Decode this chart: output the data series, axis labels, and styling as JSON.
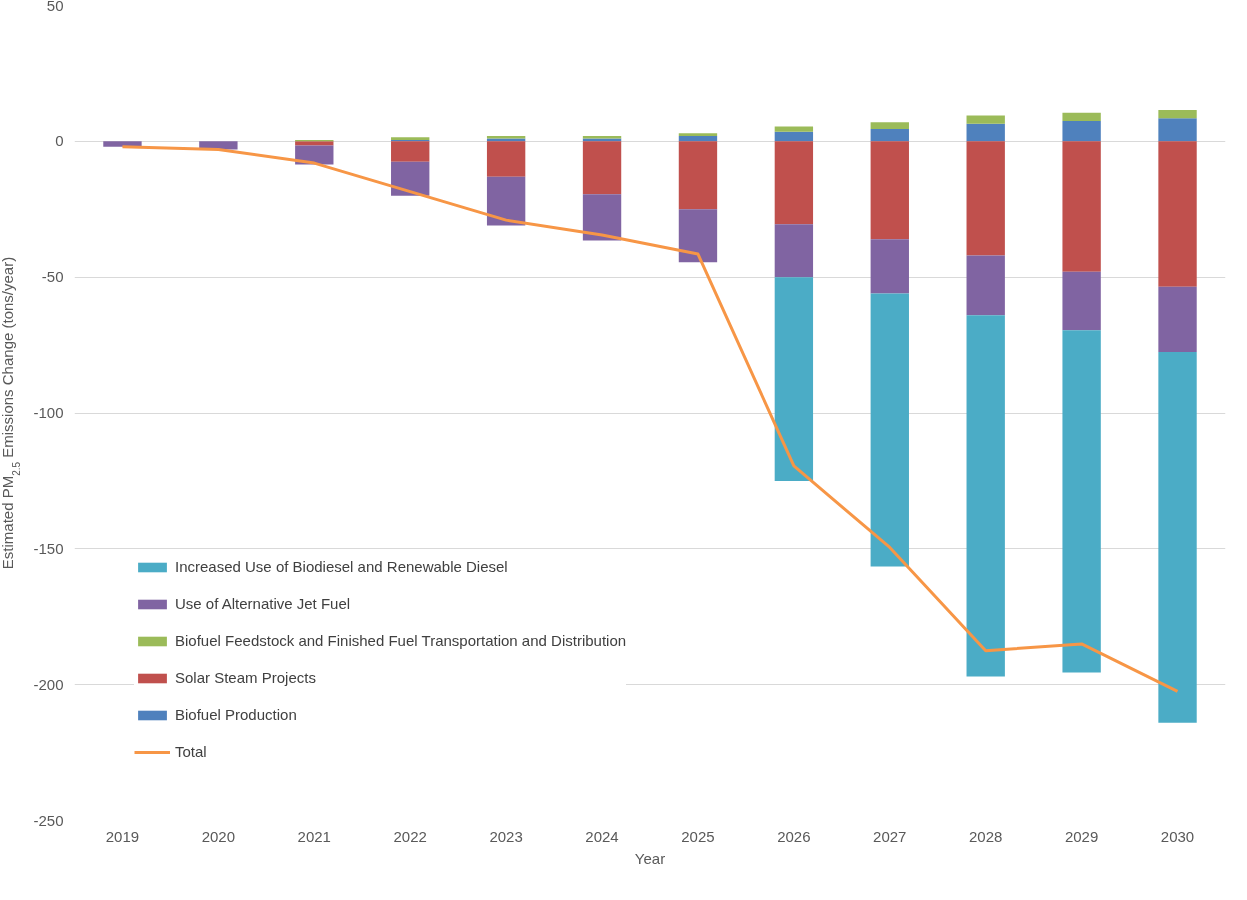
{
  "chart_data": {
    "type": "bar",
    "stacked": true,
    "xlabel": "Year",
    "ylabel": "Estimated PM$_{2.5}$ Emissions Change (tons/year)",
    "categories": [
      "2019",
      "2020",
      "2021",
      "2022",
      "2023",
      "2024",
      "2025",
      "2026",
      "2027",
      "2028",
      "2029",
      "2030"
    ],
    "ylim": [
      -250,
      50
    ],
    "yticks": [
      -250,
      -200,
      -150,
      -100,
      -50,
      0,
      50
    ],
    "grid": "y",
    "legend": "bottom left",
    "series": [
      {
        "name": "Biofuel Production",
        "color": "#4f81bd",
        "values": [
          0,
          0,
          0,
          0.5,
          1,
          1,
          2,
          3.5,
          4.5,
          6.5,
          7.5,
          8.5
        ]
      },
      {
        "name": "Solar Steam Projects",
        "color": "#c0504d",
        "values": [
          0,
          0,
          -1.5,
          -7.5,
          -13,
          -19.5,
          -25,
          -30.5,
          -36,
          -42,
          -48,
          -53.5
        ]
      },
      {
        "name": "Biofuel Feedstock and Finished Fuel Transportation and Distribution",
        "color": "#9bbb59",
        "values": [
          0,
          0,
          0.5,
          1,
          1,
          1,
          1,
          2,
          2.5,
          3,
          3,
          3
        ]
      },
      {
        "name": "Use of Alternative Jet Fuel",
        "color": "#8064a2",
        "values": [
          -2,
          -3,
          -7,
          -12.5,
          -18,
          -17,
          -19.5,
          -19.5,
          -20,
          -22,
          -21.5,
          -24
        ]
      },
      {
        "name": "Increased Use of Biodiesel and Renewable Diesel",
        "color": "#4bacc6",
        "values": [
          0,
          0,
          0,
          0,
          0,
          0,
          0,
          -75,
          -100.5,
          -133,
          -126,
          -136.5
        ]
      },
      {
        "name": "Total",
        "type": "line",
        "color": "#f79646",
        "marker": "none",
        "line_style": "solid",
        "values": [
          -2,
          -3,
          -8,
          -18.5,
          -29,
          -34.5,
          -41.5,
          -119.5,
          -149.5,
          -187.5,
          -185,
          -202.5
        ]
      }
    ]
  }
}
